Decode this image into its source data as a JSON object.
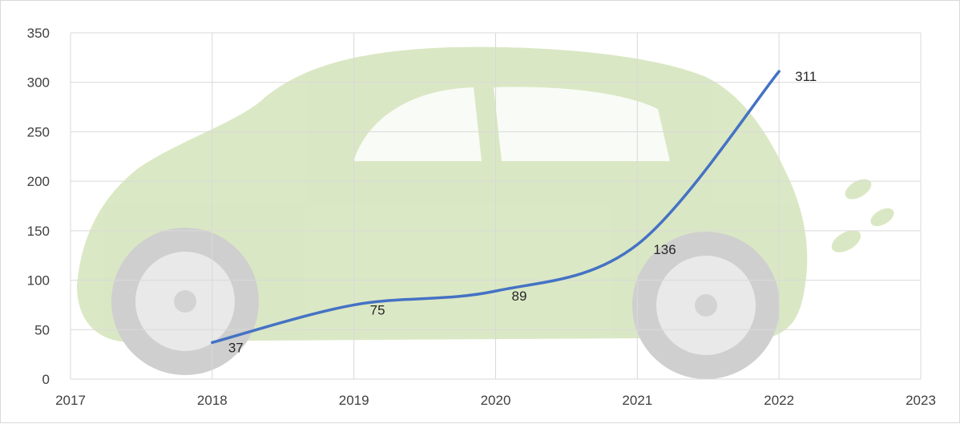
{
  "chart_data": {
    "type": "line",
    "title": "",
    "xlabel": "",
    "ylabel": "",
    "x": [
      2018,
      2019,
      2020,
      2021,
      2022
    ],
    "series": [
      {
        "values": [
          37,
          75,
          89,
          136,
          311
        ],
        "color": "#4472c4"
      }
    ],
    "xlim": [
      2017,
      2023
    ],
    "ylim": [
      0,
      350
    ],
    "x_ticks": [
      "2017",
      "2018",
      "2019",
      "2020",
      "2021",
      "2022",
      "2023"
    ],
    "y_ticks": [
      "0",
      "50",
      "100",
      "150",
      "200",
      "250",
      "300",
      "350"
    ],
    "data_labels": [
      "37",
      "75",
      "89",
      "136",
      "311"
    ],
    "grid": true,
    "smooth": true,
    "background_image": "green-leaf-car-watermark",
    "gridline_color": "#d9d9d9",
    "legend": "none"
  }
}
